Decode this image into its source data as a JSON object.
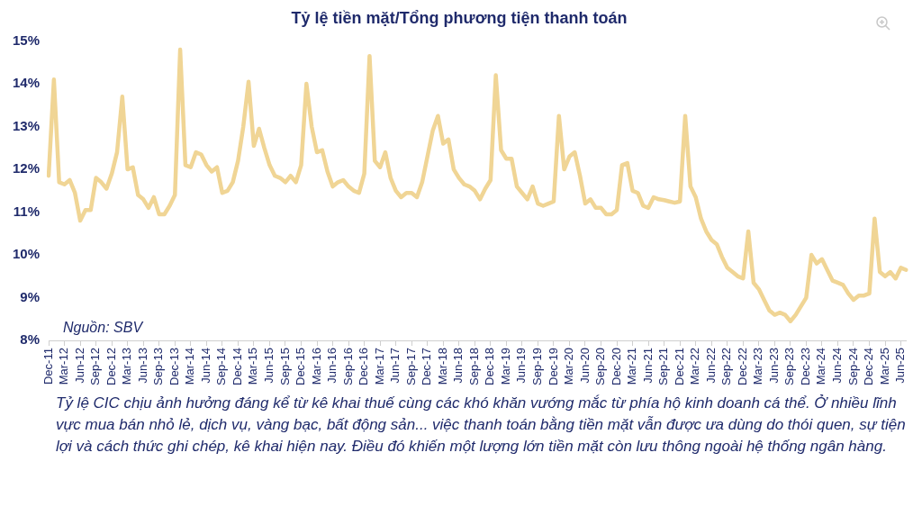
{
  "chart_data": {
    "type": "line",
    "title": "Tỷ lệ tiền mặt/Tổng phương tiện thanh toán",
    "categories": [
      "Dec-11",
      null,
      null,
      "Mar-12",
      null,
      null,
      "Jun-12",
      null,
      null,
      "Sep-12",
      null,
      null,
      "Dec-12",
      null,
      null,
      "Mar-13",
      null,
      null,
      "Jun-13",
      null,
      null,
      "Sep-13",
      null,
      null,
      "Dec-13",
      null,
      null,
      "Mar-14",
      null,
      null,
      "Jun-14",
      null,
      null,
      "Sep-14",
      null,
      null,
      "Dec-14",
      null,
      null,
      "Mar-15",
      null,
      null,
      "Jun-15",
      null,
      null,
      "Sep-15",
      null,
      null,
      "Dec-15",
      null,
      null,
      "Mar-16",
      null,
      null,
      "Jun-16",
      null,
      null,
      "Sep-16",
      null,
      null,
      "Dec-16",
      null,
      null,
      "Mar-17",
      null,
      null,
      "Jun-17",
      null,
      null,
      "Sep-17",
      null,
      null,
      "Dec-17",
      null,
      null,
      "Mar-18",
      null,
      null,
      "Jun-18",
      null,
      null,
      "Sep-18",
      null,
      null,
      "Dec-18",
      null,
      null,
      "Mar-19",
      null,
      null,
      "Jun-19",
      null,
      null,
      "Sep-19",
      null,
      null,
      "Dec-19",
      null,
      null,
      "Mar-20",
      null,
      null,
      "Jun-20",
      null,
      null,
      "Sep-20",
      null,
      null,
      "Dec-20",
      null,
      null,
      "Mar-21",
      null,
      null,
      "Jun-21",
      null,
      null,
      "Sep-21",
      null,
      null,
      "Dec-21",
      null,
      null,
      "Mar-22",
      null,
      null,
      "Jun-22",
      null,
      null,
      "Sep-22",
      null,
      null,
      "Dec-22",
      null,
      null,
      "Mar-23",
      null,
      null,
      "Jun-23",
      null,
      null,
      "Sep-23",
      null,
      null,
      "Dec-23",
      null,
      null,
      "Mar-24",
      null,
      null,
      "Jun-24",
      null,
      null,
      "Sep-24",
      null,
      null,
      "Dec-24",
      null,
      null,
      "Mar-25",
      null,
      null,
      "Jun-25",
      null
    ],
    "series": [
      {
        "color": "#f0d595",
        "values": [
          11.85,
          14.1,
          11.7,
          11.65,
          11.75,
          11.45,
          10.8,
          11.05,
          11.05,
          11.8,
          11.7,
          11.55,
          11.9,
          12.4,
          13.7,
          12.0,
          12.05,
          11.4,
          11.3,
          11.1,
          11.35,
          10.95,
          10.95,
          11.15,
          11.4,
          14.8,
          12.1,
          12.05,
          12.4,
          12.35,
          12.1,
          11.95,
          12.05,
          11.45,
          11.5,
          11.7,
          12.2,
          13.0,
          14.05,
          12.55,
          12.95,
          12.5,
          12.1,
          11.85,
          11.8,
          11.7,
          11.85,
          11.7,
          12.1,
          14.0,
          13.0,
          12.4,
          12.45,
          11.95,
          11.6,
          11.7,
          11.75,
          11.6,
          11.5,
          11.45,
          11.9,
          14.65,
          12.2,
          12.05,
          12.4,
          11.8,
          11.5,
          11.35,
          11.45,
          11.45,
          11.35,
          11.7,
          12.3,
          12.9,
          13.25,
          12.6,
          12.7,
          12.0,
          11.8,
          11.65,
          11.6,
          11.5,
          11.3,
          11.55,
          11.75,
          14.2,
          12.45,
          12.25,
          12.25,
          11.6,
          11.45,
          11.3,
          11.6,
          11.2,
          11.15,
          11.2,
          11.25,
          13.25,
          12.0,
          12.3,
          12.4,
          11.85,
          11.2,
          11.3,
          11.1,
          11.1,
          10.95,
          10.95,
          11.05,
          12.1,
          12.15,
          11.5,
          11.45,
          11.15,
          11.1,
          11.35,
          11.3,
          11.28,
          11.25,
          11.22,
          11.25,
          13.25,
          11.6,
          11.35,
          10.85,
          10.55,
          10.35,
          10.25,
          9.95,
          9.7,
          9.6,
          9.5,
          9.45,
          10.55,
          9.35,
          9.2,
          8.95,
          8.7,
          8.6,
          8.65,
          8.6,
          8.45,
          8.6,
          8.8,
          9.0,
          10.0,
          9.8,
          9.9,
          9.65,
          9.4,
          9.35,
          9.3,
          9.1,
          8.95,
          9.05,
          9.05,
          9.1,
          10.85,
          9.6,
          9.5,
          9.6,
          9.45,
          9.7,
          9.65
        ]
      }
    ],
    "ylim": [
      8,
      15
    ],
    "yticks": [
      {
        "value": 8,
        "label": "8%"
      },
      {
        "value": 9,
        "label": "9%"
      },
      {
        "value": 10,
        "label": "10%"
      },
      {
        "value": 11,
        "label": "11%"
      },
      {
        "value": 12,
        "label": "12%"
      },
      {
        "value": 13,
        "label": "13%"
      },
      {
        "value": 14,
        "label": "14%"
      },
      {
        "value": 15,
        "label": "15%"
      }
    ],
    "grid": false,
    "legend": false,
    "marker": "none",
    "line_style": "solid",
    "annotations": [
      "Nguồn: SBV",
      "Tỷ lệ CIC chịu ảnh hưởng đáng kể từ kê khai thuế cùng các khó khăn vướng mắc từ phía hộ kinh doanh cá thể. Ở nhiều lĩnh vực mua bán nhỏ lẻ, dịch vụ, vàng bạc, bất động sản... việc thanh toán bằng tiền mặt vẫn được ưa dùng do thói quen, sự tiện lợi và cách thức ghi chép, kê khai hiện nay. Điều đó khiến một lượng lớn tiền mặt còn lưu thông ngoài hệ thống ngân hàng."
    ]
  }
}
